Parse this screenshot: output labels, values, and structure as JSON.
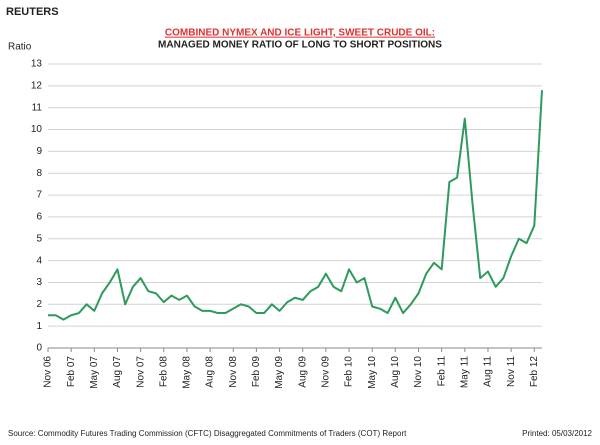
{
  "header": "REUTERS",
  "chart_data": {
    "type": "line",
    "title": "COMBINED NYMEX AND ICE LIGHT, SWEET CRUDE OIL:",
    "subtitle": "MANAGED MONEY RATIO OF LONG TO SHORT POSITIONS",
    "y_label": "Ratio",
    "categories": [
      "Nov 06",
      null,
      null,
      "Feb 07",
      null,
      null,
      "May 07",
      null,
      null,
      "Aug 07",
      null,
      null,
      "Nov 07",
      null,
      null,
      "Feb 08",
      null,
      null,
      "May 08",
      null,
      null,
      "Aug 08",
      null,
      null,
      "Nov 08",
      null,
      null,
      "Feb 09",
      null,
      null,
      "May 09",
      null,
      null,
      "Aug 09",
      null,
      null,
      "Nov 09",
      null,
      null,
      "Feb 10",
      null,
      null,
      "May 10",
      null,
      null,
      "Aug 10",
      null,
      null,
      "Nov 10",
      null,
      null,
      "Feb 11",
      null,
      null,
      "May 11",
      null,
      null,
      "Aug 11",
      null,
      null,
      "Nov 11",
      null,
      null,
      "Feb 12",
      null
    ],
    "series": [
      {
        "name": "Ratio",
        "color": "#2e9a5c",
        "values": [
          1.5,
          1.5,
          1.3,
          1.5,
          1.6,
          2.0,
          1.7,
          2.5,
          3.0,
          3.6,
          2.0,
          2.8,
          3.2,
          2.6,
          2.5,
          2.1,
          2.4,
          2.2,
          2.4,
          1.9,
          1.7,
          1.7,
          1.6,
          1.6,
          1.8,
          2.0,
          1.9,
          1.6,
          1.6,
          2.0,
          1.7,
          2.1,
          2.3,
          2.2,
          2.6,
          2.8,
          3.4,
          2.8,
          2.6,
          3.6,
          3.0,
          3.2,
          1.9,
          1.8,
          1.6,
          2.3,
          1.6,
          2.0,
          2.5,
          3.4,
          3.9,
          3.6,
          7.6,
          7.8,
          10.5,
          6.6,
          3.2,
          3.5,
          2.8,
          3.2,
          4.2,
          5.0,
          4.8,
          5.6,
          11.8
        ]
      }
    ],
    "ylim": [
      0,
      13
    ],
    "yticks": [
      0,
      1,
      2,
      3,
      4,
      5,
      6,
      7,
      8,
      9,
      10,
      11,
      12,
      13
    ],
    "grid": true
  },
  "footer": {
    "source": "Source:  Commodity Futures Trading Commission (CFTC) Disaggregated Commitments of Traders (COT) Report",
    "printed": "Printed:  05/03/2012"
  }
}
